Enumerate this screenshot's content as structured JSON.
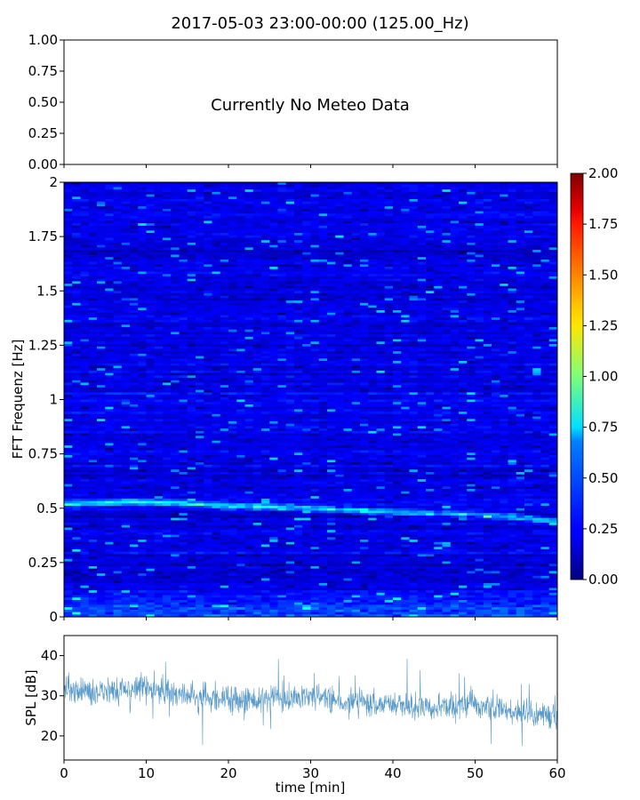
{
  "chart_data": [
    {
      "type": "line",
      "panel": "meteo",
      "title": "2017-05-03 23:00-00:00 (125.00_Hz)",
      "annotation": "Currently No Meteo Data",
      "ylim": [
        0.0,
        1.0
      ],
      "yticks": [
        "0.00",
        "0.25",
        "0.50",
        "0.75",
        "1.00"
      ],
      "xlim": [
        0,
        60
      ],
      "series": []
    },
    {
      "type": "heatmap",
      "panel": "spectrogram",
      "ylabel": "FFT Frequenz [Hz]",
      "xlim": [
        0,
        60
      ],
      "ylim": [
        0,
        2
      ],
      "yticks": [
        "0",
        "0.25",
        "0.5",
        "0.75",
        "1",
        "1.25",
        "1.5",
        "1.75",
        "2"
      ],
      "colormap": "jet",
      "color_range": [
        0.0,
        2.0
      ],
      "colorbar_ticks": [
        "0.00",
        "0.25",
        "0.50",
        "0.75",
        "1.00",
        "1.25",
        "1.50",
        "1.75",
        "2.00"
      ],
      "background_level": 0.2,
      "ridge": {
        "description_points": [
          [
            0,
            0.52
          ],
          [
            10,
            0.53
          ],
          [
            20,
            0.51
          ],
          [
            30,
            0.5
          ],
          [
            40,
            0.48
          ],
          [
            50,
            0.47
          ],
          [
            55,
            0.46
          ],
          [
            60,
            0.44
          ]
        ],
        "level": 0.9
      },
      "low_freq_band": {
        "freq_max": 0.15,
        "level": 0.45
      }
    },
    {
      "type": "line",
      "panel": "spl",
      "ylabel": "SPL [dB]",
      "xlabel": "time [min]",
      "xlim": [
        0,
        60
      ],
      "ylim": [
        14,
        45
      ],
      "xticks": [
        "0",
        "10",
        "20",
        "30",
        "40",
        "50",
        "60"
      ],
      "yticks": [
        "20",
        "30",
        "40"
      ],
      "series": [
        {
          "color": "#1f77b4",
          "trend": [
            [
              0,
              31
            ],
            [
              5,
              31
            ],
            [
              10,
              32
            ],
            [
              15,
              30
            ],
            [
              20,
              29
            ],
            [
              25,
              29
            ],
            [
              30,
              30
            ],
            [
              35,
              28
            ],
            [
              40,
              28
            ],
            [
              45,
              27
            ],
            [
              50,
              28
            ],
            [
              55,
              26
            ],
            [
              60,
              25
            ]
          ],
          "spread": 4.5
        }
      ]
    }
  ]
}
